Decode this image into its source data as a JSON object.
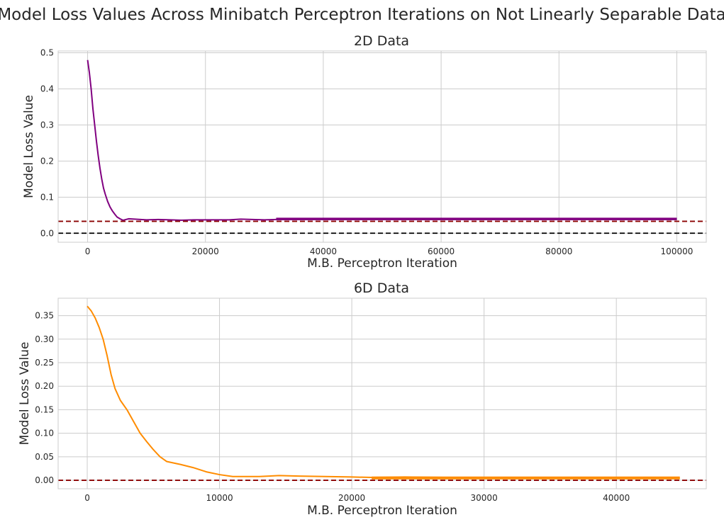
{
  "suptitle": "Model Loss Values Across Minibatch Perceptron Iterations on Not Linearly Separable Data",
  "colors": {
    "series_2d": "#800080",
    "series_6d": "#ff8c00",
    "hline_dark_red": "#8b0000",
    "hline_black": "#000000",
    "grid": "#cccccc",
    "spine": "#cccccc",
    "text": "#262626"
  },
  "chart_data": [
    {
      "type": "line",
      "title": "2D Data",
      "xlabel": "M.B. Perceptron Iteration",
      "ylabel": "Model Loss Value",
      "xlim": [
        -5000,
        105000
      ],
      "ylim": [
        -0.025,
        0.505
      ],
      "xticks": [
        0,
        20000,
        40000,
        60000,
        80000,
        100000
      ],
      "xtick_labels": [
        "0",
        "20000",
        "40000",
        "60000",
        "80000",
        "100000"
      ],
      "yticks": [
        0.0,
        0.1,
        0.2,
        0.3,
        0.4,
        0.5
      ],
      "ytick_labels": [
        "0.0",
        "0.1",
        "0.2",
        "0.3",
        "0.4",
        "0.5"
      ],
      "grid": true,
      "series": [
        {
          "color": "#800080",
          "x": [
            0,
            300,
            600,
            900,
            1200,
            1500,
            1800,
            2100,
            2400,
            2700,
            3000,
            3400,
            3800,
            4200,
            4600,
            5000,
            5500,
            6000,
            7000,
            8000,
            10000,
            12000,
            14000,
            16000,
            18000,
            20000,
            24000,
            26000,
            28000,
            30000,
            32000,
            40000,
            46000,
            60000,
            80000,
            100000
          ],
          "y": [
            0.48,
            0.445,
            0.4,
            0.345,
            0.3,
            0.255,
            0.215,
            0.18,
            0.15,
            0.125,
            0.108,
            0.088,
            0.073,
            0.062,
            0.053,
            0.045,
            0.04,
            0.036,
            0.04,
            0.039,
            0.037,
            0.038,
            0.037,
            0.036,
            0.037,
            0.037,
            0.037,
            0.039,
            0.038,
            0.037,
            0.038,
            0.039,
            0.04,
            0.04,
            0.04,
            0.04
          ],
          "band": {
            "x_start": 32000,
            "x_end": 100000,
            "y_low": 0.036,
            "y_high": 0.043
          }
        }
      ],
      "hlines": [
        {
          "y": 0.033,
          "color": "#8b0000",
          "style": "dashed"
        },
        {
          "y": 0.0,
          "color": "#000000",
          "style": "dashed"
        }
      ]
    },
    {
      "type": "line",
      "title": "6D Data",
      "xlabel": "M.B. Perceptron Iteration",
      "ylabel": "Model Loss Value",
      "xlim": [
        -2200,
        46800
      ],
      "ylim": [
        -0.018,
        0.387
      ],
      "xticks": [
        0,
        10000,
        20000,
        30000,
        40000
      ],
      "xtick_labels": [
        "0",
        "10000",
        "20000",
        "30000",
        "40000"
      ],
      "yticks": [
        0.0,
        0.05,
        0.1,
        0.15,
        0.2,
        0.25,
        0.3,
        0.35
      ],
      "ytick_labels": [
        "0.00",
        "0.05",
        "0.10",
        "0.15",
        "0.20",
        "0.25",
        "0.30",
        "0.35"
      ],
      "grid": true,
      "series": [
        {
          "color": "#ff8c00",
          "x": [
            0,
            300,
            600,
            900,
            1200,
            1500,
            1800,
            2100,
            2500,
            3000,
            3500,
            4000,
            4500,
            5000,
            5500,
            6000,
            7000,
            8000,
            9000,
            10000,
            11000,
            13000,
            14500,
            16000,
            18000,
            20000,
            21500,
            24000,
            27000,
            29000,
            30000,
            35000,
            40000,
            44800
          ],
          "y": [
            0.37,
            0.36,
            0.345,
            0.325,
            0.3,
            0.265,
            0.225,
            0.195,
            0.17,
            0.15,
            0.125,
            0.1,
            0.082,
            0.065,
            0.05,
            0.04,
            0.034,
            0.027,
            0.018,
            0.012,
            0.008,
            0.008,
            0.01,
            0.009,
            0.008,
            0.007,
            0.006,
            0.007,
            0.006,
            0.006,
            0.004,
            0.004,
            0.004,
            0.004
          ],
          "band": {
            "x_start": 21500,
            "x_end": 44800,
            "y_low": 0.002,
            "y_high": 0.008
          }
        }
      ],
      "hlines": [
        {
          "y": 0.0,
          "color": "#8b0000",
          "style": "dashed"
        }
      ]
    }
  ]
}
